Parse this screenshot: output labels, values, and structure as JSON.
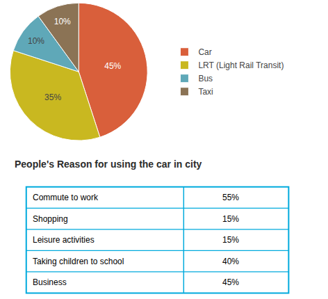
{
  "chart_data": [
    {
      "type": "pie",
      "categories": [
        "Car",
        "LRT (Light Rail Transit)",
        "Bus",
        "Taxi"
      ],
      "values": [
        45,
        35,
        10,
        10
      ],
      "value_labels": [
        "45%",
        "35%",
        "10%",
        "10%"
      ],
      "colors": [
        "#d95f3b",
        "#c9b820",
        "#5fa8b8",
        "#8b7355"
      ],
      "data_labels": true,
      "legend": "right"
    },
    {
      "type": "table",
      "title": "People's Reason for using the car in city",
      "categories": [
        "Commute to work",
        "Shopping",
        "Leisure activities",
        "Taking children to school",
        "Business"
      ],
      "values": [
        55,
        15,
        15,
        40,
        45
      ],
      "value_labels": [
        "55%",
        "15%",
        "15%",
        "40%",
        "45%"
      ],
      "color": "#00aadd"
    }
  ]
}
